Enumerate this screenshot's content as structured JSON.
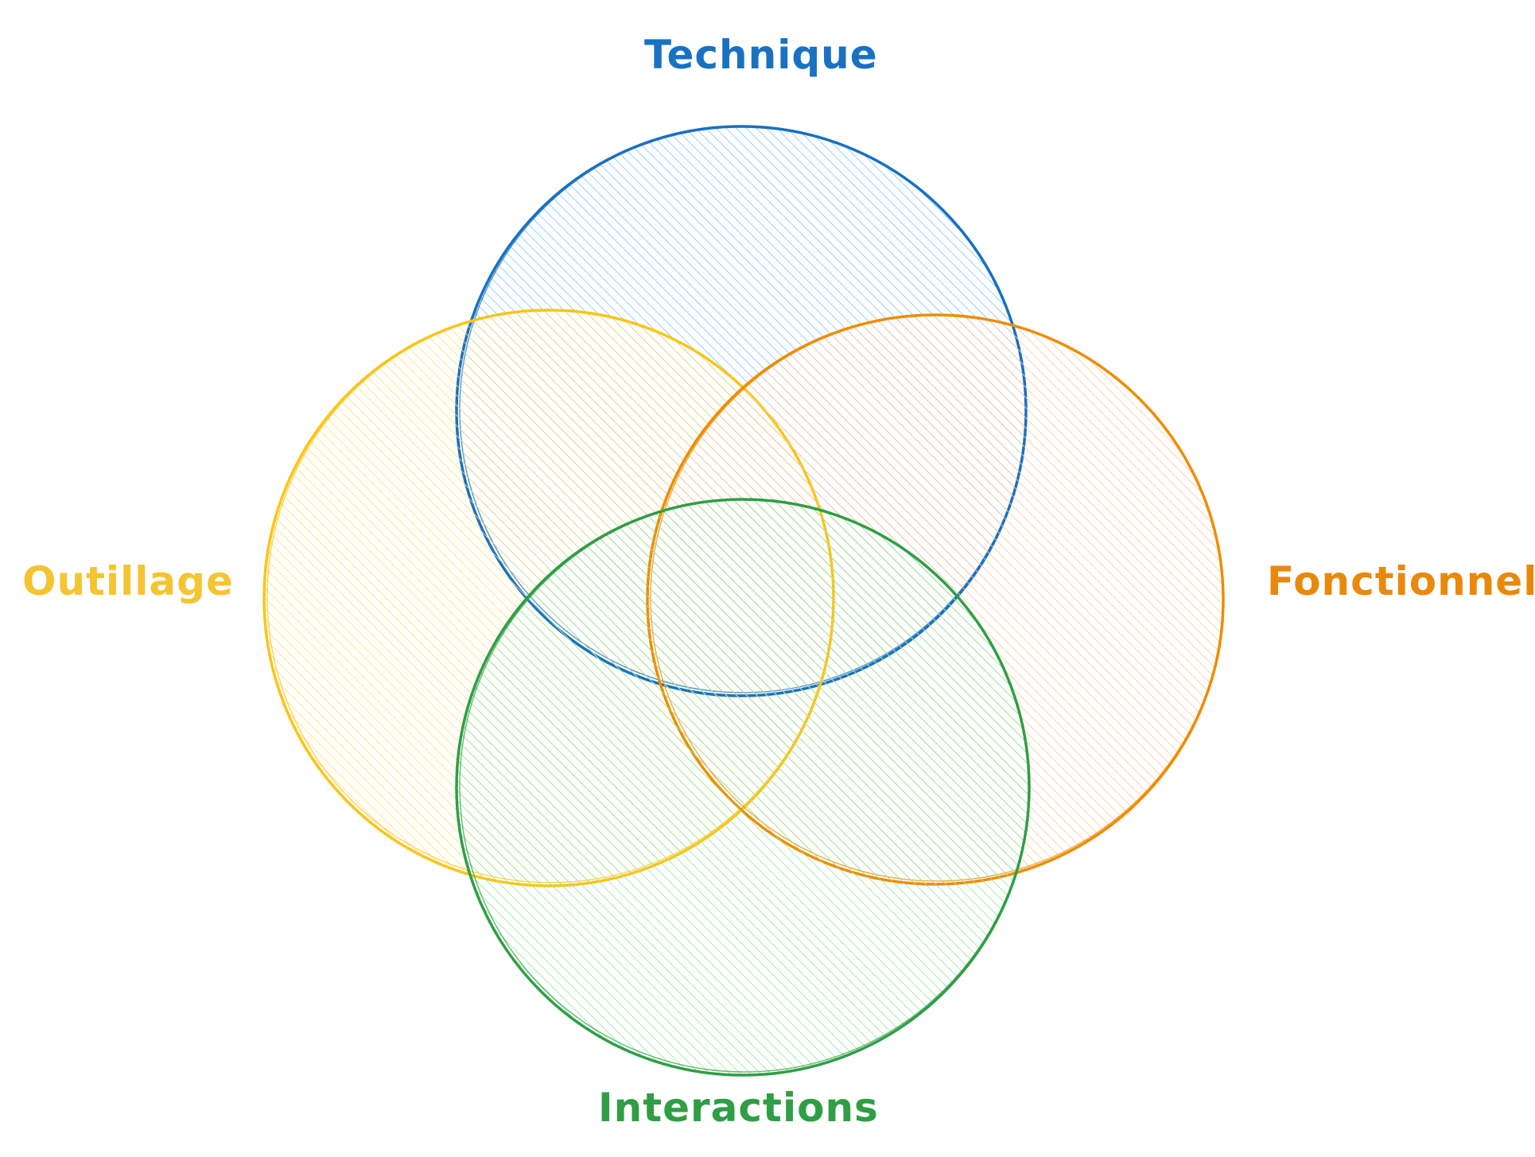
{
  "diagram": {
    "type": "venn",
    "sets": [
      {
        "id": "technique",
        "label": "Technique",
        "stroke": "#1971c2",
        "fill": "#74c0fc"
      },
      {
        "id": "outillage",
        "label": "Outillage",
        "stroke": "#fcc419",
        "fill": "#ffe066"
      },
      {
        "id": "fonctionnel",
        "label": "Fonctionnel",
        "stroke": "#f08c00",
        "fill": "#ffc9a0"
      },
      {
        "id": "interactions",
        "label": "Interactions",
        "stroke": "#2f9e44",
        "fill": "#8ce99a"
      }
    ]
  }
}
